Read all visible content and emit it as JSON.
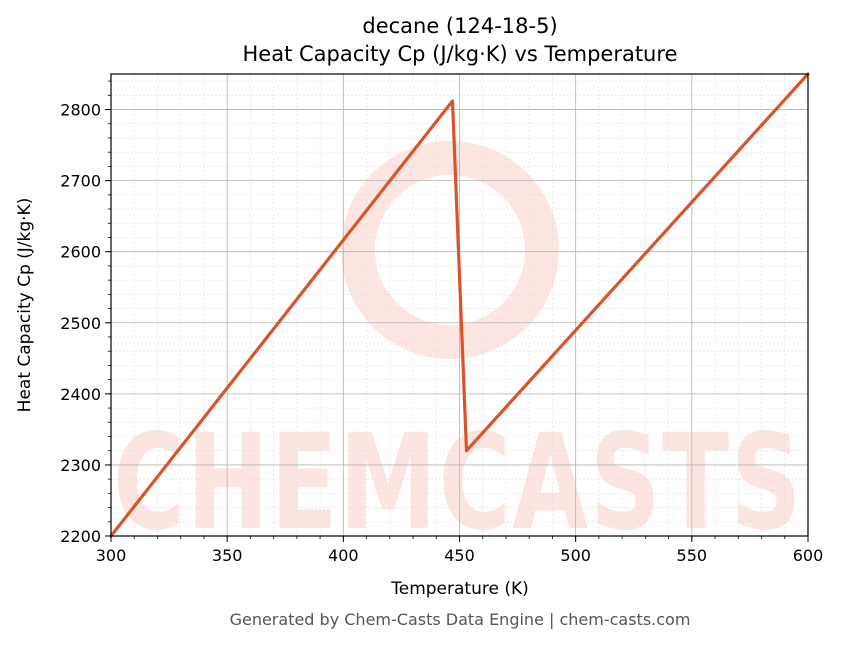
{
  "chart_data": {
    "type": "line",
    "title": "decane (124-18-5)",
    "subtitle": "Heat Capacity Cp (J/kg·K) vs Temperature",
    "xlabel": "Temperature (K)",
    "ylabel": "Heat Capacity Cp (J/kg·K)",
    "xlim": [
      300,
      600
    ],
    "ylim": [
      2200,
      2850
    ],
    "xticks": [
      300,
      350,
      400,
      450,
      500,
      550,
      600
    ],
    "yticks": [
      2200,
      2300,
      2400,
      2500,
      2600,
      2700,
      2800
    ],
    "grid": true,
    "series": [
      {
        "color": "#d9532b",
        "x": [
          300,
          447,
          453,
          600
        ],
        "y": [
          2200,
          2812,
          2320,
          2850
        ]
      }
    ]
  },
  "watermark": {
    "text": "CHEMCASTS",
    "color": "#f9b6a8"
  },
  "footer": "Generated by Chem-Casts Data Engine | chem-casts.com"
}
